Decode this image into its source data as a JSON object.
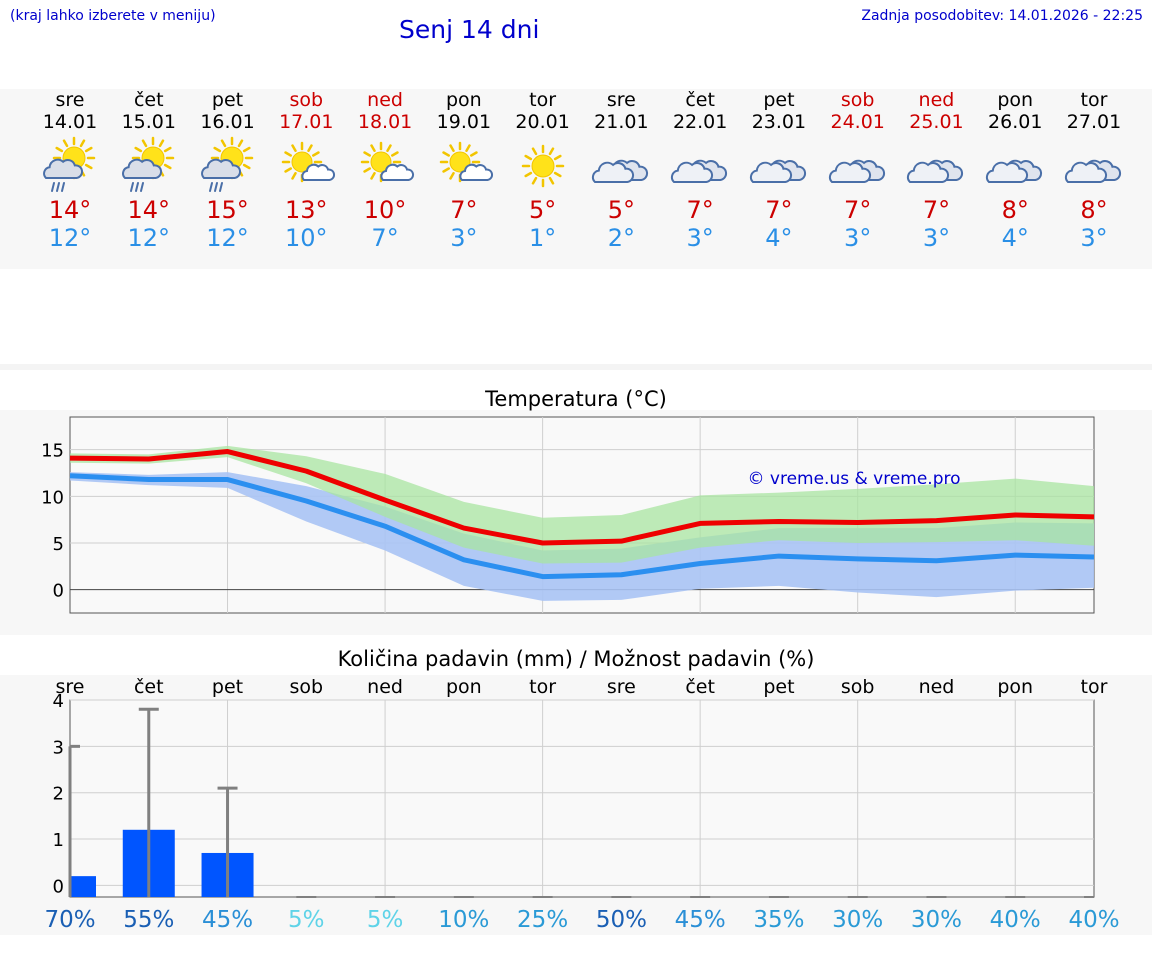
{
  "header": {
    "hint": "(kraj lahko izberete v meniju)",
    "title": "Senj 14 dni",
    "updated": "Zadnja posodobitev: 14.01.2026 - 22:25"
  },
  "days": [
    {
      "name": "sre",
      "date": "14.01",
      "weekend": false,
      "icon": "sun-cloud-rain-icon",
      "tmax": "14°",
      "tmin": "12°"
    },
    {
      "name": "čet",
      "date": "15.01",
      "weekend": false,
      "icon": "sun-cloud-rain-icon",
      "tmax": "14°",
      "tmin": "12°"
    },
    {
      "name": "pet",
      "date": "16.01",
      "weekend": false,
      "icon": "sun-cloud-rain-icon",
      "tmax": "15°",
      "tmin": "12°"
    },
    {
      "name": "sob",
      "date": "17.01",
      "weekend": true,
      "icon": "sun-small-cloud-icon",
      "tmax": "13°",
      "tmin": "10°"
    },
    {
      "name": "ned",
      "date": "18.01",
      "weekend": true,
      "icon": "sun-small-cloud-icon",
      "tmax": "10°",
      "tmin": "7°"
    },
    {
      "name": "pon",
      "date": "19.01",
      "weekend": false,
      "icon": "sun-small-cloud-icon",
      "tmax": "7°",
      "tmin": "3°"
    },
    {
      "name": "tor",
      "date": "20.01",
      "weekend": false,
      "icon": "sun-icon",
      "tmax": "5°",
      "tmin": "1°"
    },
    {
      "name": "sre",
      "date": "21.01",
      "weekend": false,
      "icon": "cloud-icon",
      "tmax": "5°",
      "tmin": "2°"
    },
    {
      "name": "čet",
      "date": "22.01",
      "weekend": false,
      "icon": "cloud-icon",
      "tmax": "7°",
      "tmin": "3°"
    },
    {
      "name": "pet",
      "date": "23.01",
      "weekend": false,
      "icon": "cloud-icon",
      "tmax": "7°",
      "tmin": "4°"
    },
    {
      "name": "sob",
      "date": "24.01",
      "weekend": true,
      "icon": "cloud-icon",
      "tmax": "7°",
      "tmin": "3°"
    },
    {
      "name": "ned",
      "date": "25.01",
      "weekend": true,
      "icon": "cloud-icon",
      "tmax": "7°",
      "tmin": "3°"
    },
    {
      "name": "pon",
      "date": "26.01",
      "weekend": false,
      "icon": "cloud-icon",
      "tmax": "8°",
      "tmin": "4°"
    },
    {
      "name": "tor",
      "date": "27.01",
      "weekend": false,
      "icon": "cloud-icon",
      "tmax": "8°",
      "tmin": "3°"
    }
  ],
  "colors": {
    "max": "#ee0000",
    "min": "#2b8ff0",
    "max_band": "#a8e4a0",
    "min_band": "#a9c3f4",
    "overlap_band": "#82c3b0",
    "bar": "#0055ff",
    "whisker": "#808080",
    "watermark": "#0000cc"
  },
  "chart_data": [
    {
      "type": "line",
      "title": "Temperatura (°C)",
      "watermark": "© vreme.us & vreme.pro",
      "ylim": [
        -2.5,
        18.5
      ],
      "yticks": [
        "0",
        "5",
        "10",
        "15"
      ],
      "ytick_values": [
        0,
        5,
        10,
        15
      ],
      "x": [
        1,
        2,
        3,
        4,
        5,
        6,
        7,
        8,
        9,
        10,
        11,
        12,
        13,
        14
      ],
      "series": [
        {
          "name": "max",
          "values": [
            14.1,
            14.0,
            14.8,
            12.7,
            9.6,
            6.6,
            5.0,
            5.2,
            7.1,
            7.3,
            7.2,
            7.4,
            8.0,
            7.8
          ]
        },
        {
          "name": "min",
          "values": [
            12.2,
            11.8,
            11.8,
            9.5,
            6.8,
            3.2,
            1.4,
            1.6,
            2.8,
            3.6,
            3.3,
            3.1,
            3.7,
            3.5
          ]
        },
        {
          "name": "max_range_high",
          "values": [
            14.6,
            14.5,
            15.4,
            14.3,
            12.4,
            9.4,
            7.7,
            8.0,
            10.1,
            10.4,
            10.8,
            11.3,
            11.9,
            11.1
          ]
        },
        {
          "name": "max_range_low",
          "values": [
            13.6,
            13.5,
            14.2,
            11.4,
            7.8,
            4.5,
            2.8,
            2.9,
            4.5,
            5.3,
            5.0,
            5.1,
            5.3,
            4.7
          ]
        },
        {
          "name": "min_range_high",
          "values": [
            12.6,
            12.3,
            12.6,
            11.1,
            8.9,
            6.0,
            4.2,
            4.4,
            5.6,
            6.6,
            6.6,
            6.6,
            7.2,
            7.1
          ]
        },
        {
          "name": "min_range_low",
          "values": [
            11.7,
            11.2,
            10.9,
            7.3,
            4.2,
            0.4,
            -1.2,
            -1.1,
            0.1,
            0.4,
            -0.3,
            -0.8,
            -0.1,
            0.2
          ]
        }
      ]
    },
    {
      "type": "bar",
      "title": "Količina padavin (mm) / Možnost padavin (%)",
      "ylim": [
        -0.25,
        4
      ],
      "yticks": [
        "0",
        "1",
        "2",
        "3",
        "4"
      ],
      "ytick_values": [
        0,
        1,
        2,
        3,
        4
      ],
      "categories": [
        "sre",
        "čet",
        "pet",
        "sob",
        "ned",
        "pon",
        "tor",
        "sre",
        "čet",
        "pet",
        "sob",
        "ned",
        "pon",
        "tor"
      ],
      "values": [
        0.2,
        1.2,
        0.7,
        0,
        0,
        0,
        0,
        0,
        0,
        0,
        0,
        0,
        0,
        0
      ],
      "whisker_high": [
        3.0,
        3.8,
        2.1,
        0,
        0,
        0,
        0,
        0,
        0,
        0,
        0,
        0,
        0,
        0
      ],
      "probability": [
        {
          "label": "70%",
          "color": "#1a5fb4"
        },
        {
          "label": "55%",
          "color": "#1a5fb4"
        },
        {
          "label": "45%",
          "color": "#2a8fd6"
        },
        {
          "label": "5%",
          "color": "#5fd3e8"
        },
        {
          "label": "5%",
          "color": "#5fd3e8"
        },
        {
          "label": "10%",
          "color": "#2a9ad6"
        },
        {
          "label": "25%",
          "color": "#2a9ad6"
        },
        {
          "label": "50%",
          "color": "#1a5fb4"
        },
        {
          "label": "45%",
          "color": "#2a8fd6"
        },
        {
          "label": "35%",
          "color": "#2a9ad6"
        },
        {
          "label": "30%",
          "color": "#2a9ad6"
        },
        {
          "label": "30%",
          "color": "#2a9ad6"
        },
        {
          "label": "40%",
          "color": "#2a9ad6"
        },
        {
          "label": "40%",
          "color": "#2a9ad6"
        }
      ]
    }
  ]
}
